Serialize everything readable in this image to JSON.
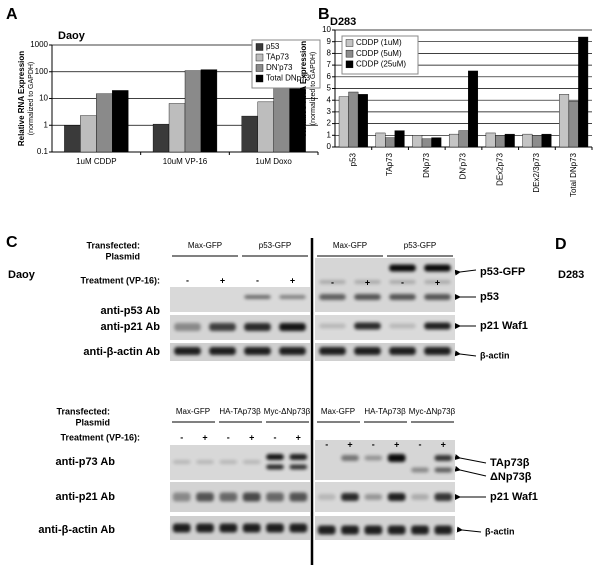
{
  "chart_data": [
    {
      "type": "bar",
      "panel": "A",
      "title": "Daoy",
      "ylabel": "Relative RNA Expression",
      "ylabel_sub": "(normalized to GAPDH)",
      "log": true,
      "ylim": [
        0.1,
        1000
      ],
      "yticks": [
        0.1,
        1,
        10,
        100,
        1000
      ],
      "grid": true,
      "legend": "upper right",
      "categories": [
        "1uM CDDP",
        "10uM VP-16",
        "1uM Doxo"
      ],
      "series": [
        {
          "name": "p53",
          "color": "#3a3a3a",
          "values": [
            1,
            1.1,
            2.2
          ]
        },
        {
          "name": "TAp73",
          "color": "#bdbdbd",
          "values": [
            2.3,
            6.5,
            7.5
          ]
        },
        {
          "name": "DN'p73",
          "color": "#8a8a8a",
          "values": [
            15,
            110,
            33
          ]
        },
        {
          "name": "Total DNp73",
          "color": "#000000",
          "values": [
            20,
            120,
            45
          ]
        }
      ]
    },
    {
      "type": "bar",
      "panel": "B",
      "title": "D283",
      "ylabel": "Relative RNA Expression",
      "ylabel_sub": "(normalized to GAPDH)",
      "log": false,
      "ylim": [
        0,
        10
      ],
      "yticks": [
        0,
        1,
        2,
        3,
        4,
        5,
        6,
        7,
        8,
        9,
        10
      ],
      "grid": true,
      "legend": "upper left",
      "categories": [
        "p53",
        "TAp73",
        "DNp73",
        "DN'p73",
        "DEx2p73",
        "DEx2/3p73",
        "Total DNp73"
      ],
      "series": [
        {
          "name": "CDDP (1uM)",
          "color": "#c4c4c4",
          "values": [
            4.3,
            1.2,
            1.0,
            1.1,
            1.2,
            1.1,
            4.5
          ]
        },
        {
          "name": "CDDP (5uM)",
          "color": "#8c8c8c",
          "values": [
            4.7,
            0.8,
            0.7,
            1.4,
            1.0,
            1.0,
            3.9
          ]
        },
        {
          "name": "CDDP (25uM)",
          "color": "#000000",
          "values": [
            4.5,
            1.4,
            0.8,
            6.5,
            1.1,
            1.1,
            9.4
          ]
        }
      ]
    }
  ],
  "blots": {
    "letter_c": "C",
    "letter_d": "D",
    "cell_left": "Daoy",
    "cell_right": "D283",
    "top": {
      "transfected": "Transfected:",
      "plasmid": "Plasmid",
      "treatment": "Treatment (VP-16):",
      "plasmids": [
        "Max-GFP",
        "p53-GFP"
      ],
      "treatments": [
        "-",
        "+",
        "-",
        "+"
      ],
      "rows": [
        "anti-p53 Ab",
        "anti-p21  Ab",
        "anti-β-actin Ab"
      ],
      "markers": [
        "p53-GFP",
        "p53",
        "p21 Waf1",
        "β-actin"
      ]
    },
    "bottom": {
      "transfected": "Transfected:",
      "plasmid": "Plasmid",
      "treatment": "Treatment (VP-16):",
      "plasmids": [
        "Max-GFP",
        "HA-TAp73β",
        "Myc-ΔNp73β"
      ],
      "treatments": [
        "-",
        "+",
        "-",
        "+",
        "-",
        "+"
      ],
      "rows": [
        "anti-p73 Ab",
        "anti-p21  Ab",
        "anti-β-actin Ab"
      ],
      "markers": [
        "TAp73β",
        "ΔNp73β",
        "p21 Waf1",
        "β-actin"
      ]
    }
  }
}
